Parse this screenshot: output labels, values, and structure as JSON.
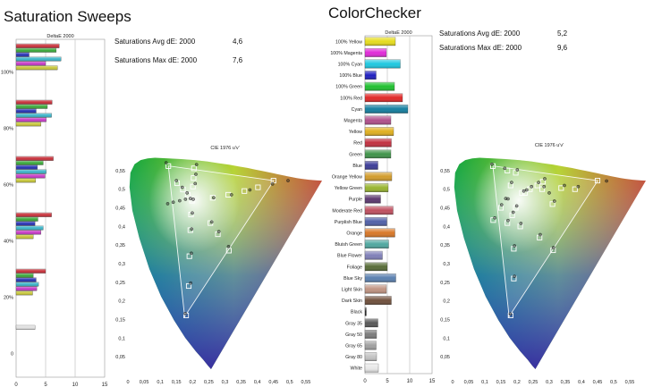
{
  "left_panel": {
    "title": "Saturation Sweeps",
    "stats": [
      {
        "label": "Saturations Avg dE:  2000",
        "value": "4,6"
      },
      {
        "label": "Saturations Max dE: 2000",
        "value": "7,6"
      }
    ]
  },
  "right_panel": {
    "title": "ColorChecker",
    "stats": [
      {
        "label": "Saturations Avg dE:  2000",
        "value": "5,2"
      },
      {
        "label": "Saturations Max dE: 2000",
        "value": "9,6"
      }
    ]
  },
  "chart_data": [
    {
      "id": "sweeps-deltae",
      "type": "bar",
      "orientation": "horizontal",
      "title": "DeltaE 2000",
      "xlim": [
        0,
        15
      ],
      "x_ticks": [
        "0",
        "5",
        "10",
        "15"
      ],
      "y_labels": [
        "100%",
        "80%",
        "60%",
        "40%",
        "20%",
        "0"
      ],
      "series": [
        {
          "name": "White",
          "color": "#e0e0e0"
        },
        {
          "name": "Red",
          "color": "#c8323c"
        },
        {
          "name": "Green",
          "color": "#3caa3c"
        },
        {
          "name": "Blue",
          "color": "#2832b4"
        },
        {
          "name": "Cyan",
          "color": "#3cb4c8"
        },
        {
          "name": "Magenta",
          "color": "#c83cc8"
        },
        {
          "name": "Yellow",
          "color": "#c8c83c"
        }
      ],
      "groups": [
        {
          "label": "100%",
          "values": [
            null,
            7.3,
            6.8,
            2.2,
            7.6,
            5.0,
            7.0
          ]
        },
        {
          "label": "80%",
          "values": [
            null,
            6.1,
            5.3,
            3.4,
            6.0,
            5.1,
            4.2
          ]
        },
        {
          "label": "60%",
          "values": [
            null,
            6.3,
            4.6,
            3.6,
            5.1,
            4.9,
            3.3
          ]
        },
        {
          "label": "40%",
          "values": [
            null,
            6.0,
            3.7,
            3.2,
            4.6,
            4.2,
            2.9
          ]
        },
        {
          "label": "20%",
          "values": [
            null,
            5.0,
            2.9,
            3.4,
            3.8,
            3.5,
            2.8
          ]
        },
        {
          "label": "0",
          "values": [
            3.2,
            null,
            null,
            null,
            null,
            null,
            null
          ]
        }
      ]
    },
    {
      "id": "sweeps-cie",
      "type": "scatter",
      "title": "CIE 1976 u'v'",
      "xlim": [
        0,
        0.6
      ],
      "ylim": [
        0,
        0.6
      ],
      "x_ticks": [
        "0",
        "0,05",
        "0,1",
        "0,15",
        "0,2",
        "0,25",
        "0,3",
        "0,35",
        "0,4",
        "0,45",
        "0,5",
        "0,55"
      ],
      "y_ticks": [
        "0,05",
        "0,1",
        "0,15",
        "0,2",
        "0,25",
        "0,3",
        "0,35",
        "0,4",
        "0,45",
        "0,5",
        "0,55"
      ],
      "targets": [
        [
          0.125,
          0.562
        ],
        [
          0.18,
          0.161
        ],
        [
          0.45,
          0.523
        ],
        [
          0.198,
          0.469
        ],
        [
          0.402,
          0.505
        ],
        [
          0.36,
          0.495
        ],
        [
          0.31,
          0.485
        ],
        [
          0.262,
          0.477
        ],
        [
          0.188,
          0.24
        ],
        [
          0.19,
          0.32
        ],
        [
          0.193,
          0.39
        ],
        [
          0.195,
          0.432
        ],
        [
          0.204,
          0.556
        ],
        [
          0.203,
          0.53
        ],
        [
          0.201,
          0.507
        ],
        [
          0.312,
          0.335
        ],
        [
          0.278,
          0.379
        ],
        [
          0.255,
          0.409
        ],
        [
          0.152,
          0.516
        ],
        [
          0.17,
          0.499
        ],
        [
          0.185,
          0.485
        ]
      ],
      "measured": [
        [
          0.118,
          0.571
        ],
        [
          0.177,
          0.166
        ],
        [
          0.495,
          0.523
        ],
        [
          0.202,
          0.473
        ],
        [
          0.447,
          0.514
        ],
        [
          0.377,
          0.498
        ],
        [
          0.32,
          0.485
        ],
        [
          0.265,
          0.477
        ],
        [
          0.194,
          0.248
        ],
        [
          0.196,
          0.328
        ],
        [
          0.197,
          0.393
        ],
        [
          0.199,
          0.436
        ],
        [
          0.212,
          0.566
        ],
        [
          0.21,
          0.54
        ],
        [
          0.208,
          0.515
        ],
        [
          0.311,
          0.346
        ],
        [
          0.281,
          0.386
        ],
        [
          0.259,
          0.412
        ],
        [
          0.15,
          0.523
        ],
        [
          0.168,
          0.505
        ],
        [
          0.183,
          0.49
        ],
        [
          0.123,
          0.461
        ],
        [
          0.14,
          0.465
        ],
        [
          0.16,
          0.469
        ],
        [
          0.178,
          0.473
        ],
        [
          0.193,
          0.475
        ]
      ]
    },
    {
      "id": "colorchecker-deltae",
      "type": "bar",
      "orientation": "horizontal",
      "title": "DeltaE 2000",
      "xlim": [
        0,
        15
      ],
      "x_ticks": [
        "0",
        "5",
        "10",
        "15"
      ],
      "categories": [
        "100% Yellow",
        "100% Magenta",
        "100% Cyan",
        "100% Blue",
        "100% Green",
        "100% Red",
        "Cyan",
        "Magenta",
        "Yellow",
        "Red",
        "Green",
        "Blue",
        "Orange Yellow",
        "Yellow Green",
        "Purple",
        "Moderate Red",
        "Purplish Blue",
        "Orange",
        "Bluish Green",
        "Blue Flower",
        "Foliage",
        "Blue Sky",
        "Light Skin",
        "Dark Skin",
        "Black",
        "Gray 35",
        "Gray 50",
        "Gray 65",
        "Gray 80",
        "White"
      ],
      "values": [
        6.8,
        4.8,
        7.9,
        2.5,
        6.6,
        8.4,
        9.6,
        5.8,
        6.4,
        5.9,
        5.8,
        2.9,
        6.0,
        5.2,
        3.5,
        6.3,
        4.9,
        6.7,
        5.3,
        3.9,
        5.0,
        6.9,
        4.8,
        5.9,
        0.3,
        2.9,
        2.6,
        2.5,
        2.6,
        3.0
      ],
      "colors": [
        "#e6dc1e",
        "#e02ad8",
        "#1ec8e0",
        "#2020c0",
        "#20c030",
        "#e02828",
        "#147fa0",
        "#b0508c",
        "#e0b020",
        "#c23040",
        "#40944a",
        "#3c3c98",
        "#d29c2c",
        "#98b430",
        "#5c3870",
        "#c05060",
        "#5060a8",
        "#d87828",
        "#50a8a0",
        "#8080b8",
        "#586c38",
        "#5a80b0",
        "#c09482",
        "#70503c",
        "#202020",
        "#585858",
        "#7c7c7c",
        "#a0a0a0",
        "#c4c4c4",
        "#e8e8e8"
      ]
    },
    {
      "id": "colorchecker-cie",
      "type": "scatter",
      "title": "CIE 1976 u'v'",
      "xlim": [
        0,
        0.6
      ],
      "ylim": [
        0,
        0.6
      ],
      "x_ticks": [
        "0",
        "0,05",
        "0,1",
        "0,15",
        "0,2",
        "0,25",
        "0,3",
        "0,35",
        "0,4",
        "0,45",
        "0,5",
        "0,55"
      ],
      "y_ticks": [
        "0,05",
        "0,1",
        "0,15",
        "0,2",
        "0,25",
        "0,3",
        "0,35",
        "0,4",
        "0,45",
        "0,5",
        "0,55"
      ],
      "targets": [
        [
          0.125,
          0.562
        ],
        [
          0.18,
          0.161
        ],
        [
          0.45,
          0.523
        ],
        [
          0.126,
          0.417
        ],
        [
          0.312,
          0.336
        ],
        [
          0.196,
          0.544
        ],
        [
          0.196,
          0.45
        ],
        [
          0.215,
          0.49
        ],
        [
          0.17,
          0.409
        ],
        [
          0.337,
          0.503
        ],
        [
          0.263,
          0.51
        ],
        [
          0.19,
          0.34
        ],
        [
          0.278,
          0.5
        ],
        [
          0.17,
          0.55
        ],
        [
          0.27,
          0.37
        ],
        [
          0.31,
          0.46
        ],
        [
          0.19,
          0.26
        ],
        [
          0.28,
          0.52
        ],
        [
          0.15,
          0.45
        ],
        [
          0.21,
          0.4
        ],
        [
          0.18,
          0.51
        ],
        [
          0.185,
          0.43
        ],
        [
          0.225,
          0.49
        ],
        [
          0.24,
          0.5
        ],
        [
          0.38,
          0.5
        ]
      ],
      "measured": [
        [
          0.122,
          0.567
        ],
        [
          0.179,
          0.165
        ],
        [
          0.478,
          0.522
        ],
        [
          0.131,
          0.423
        ],
        [
          0.313,
          0.343
        ],
        [
          0.201,
          0.552
        ],
        [
          0.199,
          0.455
        ],
        [
          0.221,
          0.495
        ],
        [
          0.172,
          0.416
        ],
        [
          0.347,
          0.51
        ],
        [
          0.267,
          0.518
        ],
        [
          0.192,
          0.348
        ],
        [
          0.284,
          0.507
        ],
        [
          0.162,
          0.556
        ],
        [
          0.272,
          0.378
        ],
        [
          0.316,
          0.468
        ],
        [
          0.192,
          0.266
        ],
        [
          0.286,
          0.528
        ],
        [
          0.152,
          0.458
        ],
        [
          0.212,
          0.408
        ],
        [
          0.183,
          0.518
        ],
        [
          0.188,
          0.438
        ],
        [
          0.23,
          0.498
        ],
        [
          0.245,
          0.507
        ],
        [
          0.39,
          0.507
        ],
        [
          0.165,
          0.475
        ],
        [
          0.172,
          0.474
        ],
        [
          0.3,
          0.49
        ]
      ]
    }
  ]
}
